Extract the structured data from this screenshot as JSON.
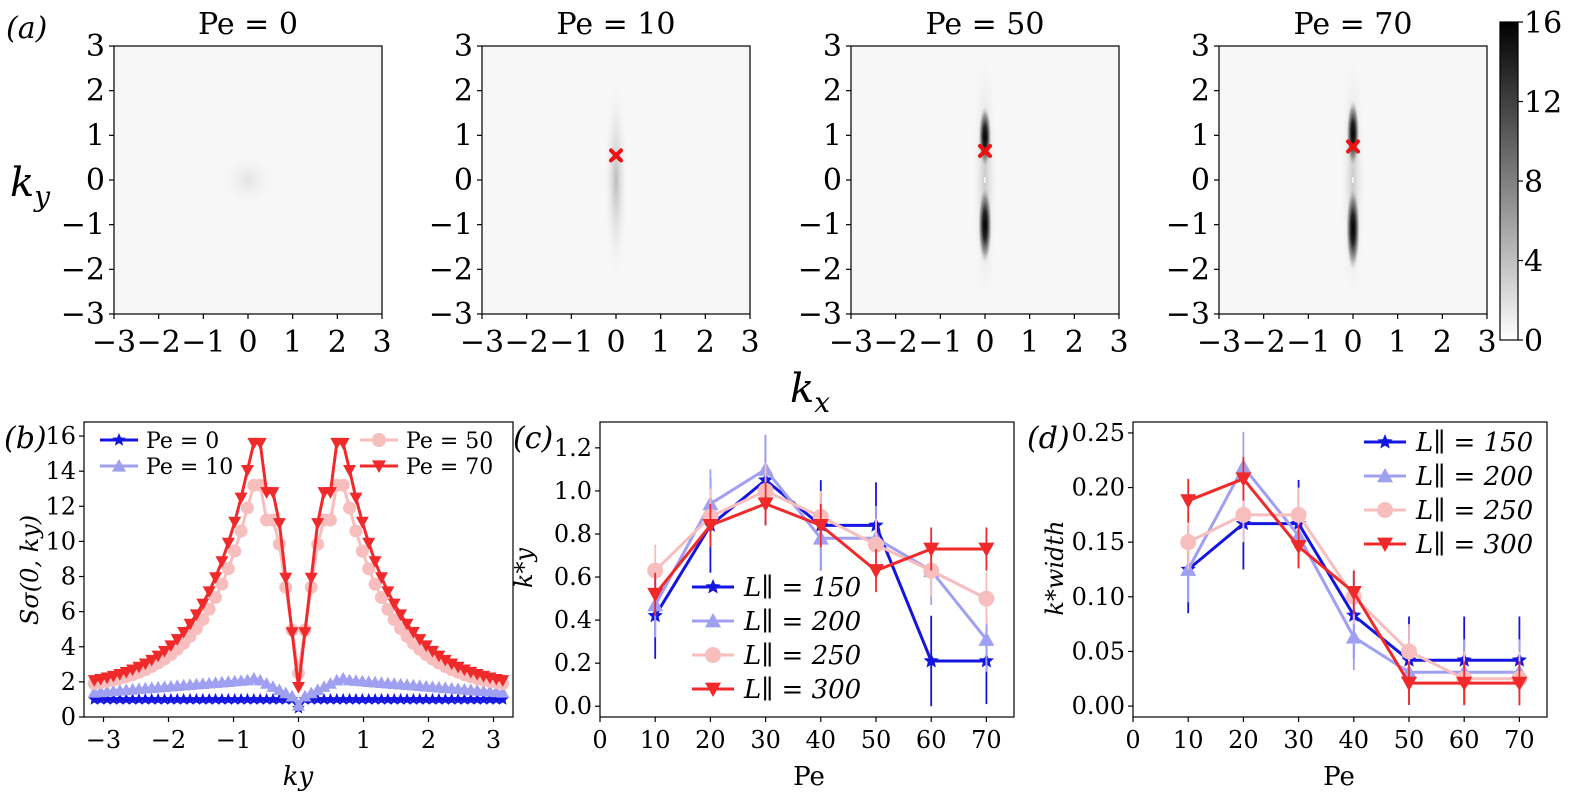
{
  "panel_labels": [
    "(a)",
    "(b)",
    "(c)",
    "(d)"
  ],
  "colorbar": {
    "ticks": [
      "0",
      "4",
      "8",
      "12",
      "16"
    ],
    "min": 0,
    "max": 16
  },
  "shared_labels": {
    "ky": "k",
    "ky_sub": "y",
    "kx": "k",
    "kx_sub": "x"
  },
  "chart_data": [
    {
      "id": "a",
      "type": "heatmap",
      "panels": [
        {
          "title": "Pe = 0",
          "pe": 0,
          "marker": null
        },
        {
          "title": "Pe = 10",
          "pe": 10,
          "marker": [
            0,
            0.55
          ]
        },
        {
          "title": "Pe = 50",
          "pe": 50,
          "marker": [
            0,
            0.65
          ]
        },
        {
          "title": "Pe = 70",
          "pe": 70,
          "marker": [
            0,
            0.75
          ]
        }
      ],
      "xlim": [
        -3,
        3
      ],
      "ylim": [
        -3,
        3
      ],
      "xticks": [
        "−3",
        "−2",
        "−1",
        "0",
        "1",
        "2",
        "3"
      ],
      "yticks": [
        "3",
        "2",
        "1",
        "0",
        "−1",
        "−2",
        "−3"
      ],
      "xlabel": "kx",
      "ylabel": "ky"
    },
    {
      "id": "b",
      "type": "line",
      "ylabel": "Sσ(0, ky)",
      "xlabel": "ky",
      "xlim": [
        -3.3,
        3.3
      ],
      "ylim": [
        0,
        16.8
      ],
      "xticks": [
        "−3",
        "−2",
        "−1",
        "0",
        "1",
        "2",
        "3"
      ],
      "yticks": [
        "0",
        "2",
        "4",
        "6",
        "8",
        "10",
        "12",
        "14",
        "16"
      ],
      "series": [
        {
          "name": "Pe = 0",
          "color": "#1515e0",
          "marker": "star",
          "kind": "flat",
          "base": 1.0,
          "center": 0.5
        },
        {
          "name": "Pe = 10",
          "color": "#a0a0f2",
          "marker": "triangle-up",
          "kind": "bump",
          "edge": 1.4,
          "peak": 2.2,
          "center": 0.65
        },
        {
          "name": "Pe = 50",
          "color": "#f8bebe",
          "marker": "circle",
          "kind": "peak",
          "edge": 1.5,
          "peak": 13.2,
          "center": 2.5
        },
        {
          "name": "Pe = 70",
          "color": "#f02a2a",
          "marker": "triangle-down",
          "kind": "peak",
          "edge": 1.6,
          "peak": 15.6,
          "center": 1.7
        }
      ]
    },
    {
      "id": "c",
      "type": "line",
      "ylabel": "k*y",
      "xlabel": "Pe",
      "xlim": [
        0,
        75
      ],
      "ylim": [
        -0.05,
        1.32
      ],
      "xticks": [
        0,
        10,
        20,
        30,
        40,
        50,
        60,
        70
      ],
      "yticks": [
        "0.0",
        "0.2",
        "0.4",
        "0.6",
        "0.8",
        "1.0",
        "1.2"
      ],
      "x": [
        10,
        20,
        30,
        40,
        50,
        60,
        70
      ],
      "series": [
        {
          "name": "L∥ = 150",
          "color": "#1515e0",
          "marker": "star",
          "values": [
            0.42,
            0.84,
            1.05,
            0.84,
            0.84,
            0.21,
            0.21
          ],
          "err": [
            0.2,
            0.22,
            0.21,
            0.21,
            0.2,
            0.21,
            0.2
          ]
        },
        {
          "name": "L∥ = 200",
          "color": "#a0a0f2",
          "marker": "triangle-up",
          "values": [
            0.47,
            0.94,
            1.1,
            0.78,
            0.78,
            0.63,
            0.31
          ],
          "err": [
            0.15,
            0.16,
            0.16,
            0.15,
            0.15,
            0.16,
            0.15
          ]
        },
        {
          "name": "L∥ = 250",
          "color": "#f8bebe",
          "marker": "circle",
          "values": [
            0.63,
            0.88,
            1.0,
            0.88,
            0.75,
            0.63,
            0.5
          ],
          "err": [
            0.12,
            0.13,
            0.13,
            0.12,
            0.12,
            0.12,
            0.12
          ]
        },
        {
          "name": "L∥ = 300",
          "color": "#f02a2a",
          "marker": "triangle-down",
          "values": [
            0.52,
            0.84,
            0.94,
            0.84,
            0.63,
            0.73,
            0.73
          ],
          "err": [
            0.1,
            0.1,
            0.1,
            0.1,
            0.1,
            0.1,
            0.1
          ]
        }
      ]
    },
    {
      "id": "d",
      "type": "line",
      "ylabel": "k*width",
      "xlabel": "Pe",
      "xlim": [
        0,
        75
      ],
      "ylim": [
        -0.01,
        0.26
      ],
      "xticks": [
        0,
        10,
        20,
        30,
        40,
        50,
        60,
        70
      ],
      "yticks": [
        "0.00",
        "0.05",
        "0.10",
        "0.15",
        "0.20",
        "0.25"
      ],
      "x": [
        10,
        20,
        30,
        40,
        50,
        60,
        70
      ],
      "series": [
        {
          "name": "L∥ = 150",
          "color": "#1515e0",
          "marker": "star",
          "values": [
            0.125,
            0.167,
            0.167,
            0.083,
            0.042,
            0.042,
            0.042
          ],
          "err": [
            0.04,
            0.042,
            0.04,
            0.04,
            0.04,
            0.04,
            0.04
          ]
        },
        {
          "name": "L∥ = 200",
          "color": "#a0a0f2",
          "marker": "triangle-up",
          "values": [
            0.125,
            0.219,
            0.156,
            0.063,
            0.031,
            0.031,
            0.031
          ],
          "err": [
            0.03,
            0.032,
            0.03,
            0.03,
            0.03,
            0.03,
            0.03
          ]
        },
        {
          "name": "L∥ = 250",
          "color": "#f8bebe",
          "marker": "circle",
          "values": [
            0.15,
            0.175,
            0.175,
            0.1,
            0.05,
            0.025,
            0.025
          ],
          "err": [
            0.025,
            0.025,
            0.025,
            0.025,
            0.025,
            0.025,
            0.025
          ]
        },
        {
          "name": "L∥ = 300",
          "color": "#f02a2a",
          "marker": "triangle-down",
          "values": [
            0.188,
            0.208,
            0.146,
            0.104,
            0.021,
            0.021,
            0.021
          ],
          "err": [
            0.02,
            0.02,
            0.02,
            0.02,
            0.02,
            0.02,
            0.02
          ]
        }
      ]
    }
  ]
}
